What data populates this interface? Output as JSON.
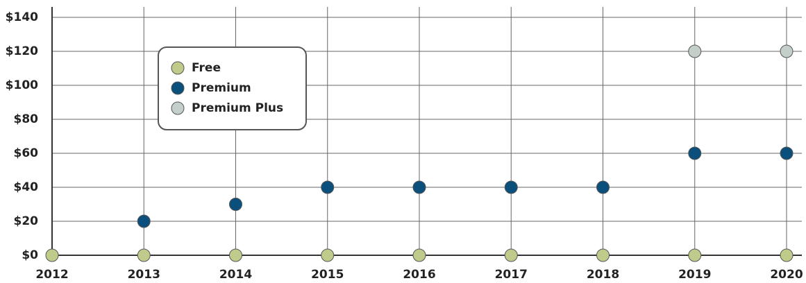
{
  "chart_data": {
    "type": "scatter",
    "x": [
      2012,
      2013,
      2014,
      2015,
      2016,
      2017,
      2018,
      2019,
      2020
    ],
    "xlim": [
      2012,
      2020
    ],
    "xticks": [
      2012,
      2013,
      2014,
      2015,
      2016,
      2017,
      2018,
      2019,
      2020
    ],
    "ylim": [
      0,
      140
    ],
    "yticks": [
      {
        "value": 0,
        "label": "$0"
      },
      {
        "value": 20,
        "label": "$20"
      },
      {
        "value": 40,
        "label": "$40"
      },
      {
        "value": 60,
        "label": "$60"
      },
      {
        "value": 80,
        "label": "$80"
      },
      {
        "value": 100,
        "label": "$100"
      },
      {
        "value": 120,
        "label": "$120"
      },
      {
        "value": 140,
        "label": "$140"
      }
    ],
    "grid": true,
    "legend": "upper left",
    "series": [
      {
        "name": "Free",
        "color": "#bfcb8a",
        "values": [
          0,
          0,
          0,
          0,
          0,
          0,
          0,
          0,
          0
        ]
      },
      {
        "name": "Premium",
        "color": "#0b4f7c",
        "values": [
          null,
          20,
          30,
          40,
          40,
          40,
          40,
          60,
          60
        ]
      },
      {
        "name": "Premium Plus",
        "color": "#c3cfc8",
        "values": [
          null,
          null,
          null,
          null,
          null,
          null,
          null,
          120,
          120
        ]
      }
    ]
  }
}
